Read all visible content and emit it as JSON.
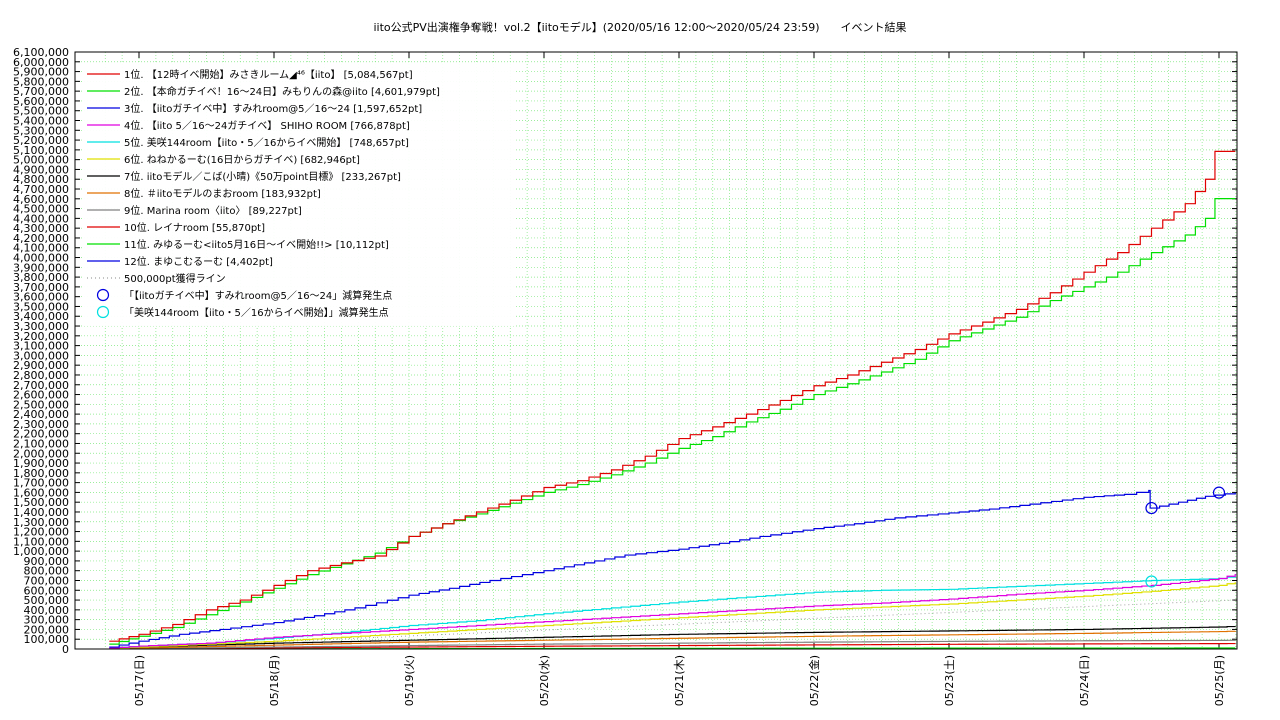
{
  "chart_data": {
    "type": "line",
    "title": "iito公式PV出演権争奪戦！vol.2【iitoモデル】(2020/05/16 12:00〜2020/05/24 23:59)      イベント結果",
    "x_ticks": [
      "05/17(日)",
      "05/18(月)",
      "05/19(火)",
      "05/20(水)",
      "05/21(木)",
      "05/22(金)",
      "05/23(土)",
      "05/24(日)",
      "05/25(月)"
    ],
    "x_range": [
      0.0,
      8.12
    ],
    "y_ticks": [
      "0",
      "100,000",
      "200,000",
      "300,000",
      "400,000",
      "500,000",
      "600,000",
      "700,000",
      "800,000",
      "900,000",
      "1,000,000",
      "1,100,000",
      "1,200,000",
      "1,300,000",
      "1,400,000",
      "1,500,000",
      "1,600,000",
      "1,700,000",
      "1,800,000",
      "1,900,000",
      "2,000,000",
      "2,100,000",
      "2,200,000",
      "2,300,000",
      "2,400,000",
      "2,500,000",
      "2,600,000",
      "2,700,000",
      "2,800,000",
      "2,900,000",
      "3,000,000",
      "3,100,000",
      "3,200,000",
      "3,300,000",
      "3,400,000",
      "3,500,000",
      "3,600,000",
      "3,700,000",
      "3,800,000",
      "3,900,000",
      "4,000,000",
      "4,100,000",
      "4,200,000",
      "4,300,000",
      "4,400,000",
      "4,500,000",
      "4,600,000",
      "4,700,000",
      "4,800,000",
      "4,900,000",
      "5,000,000",
      "5,100,000",
      "5,200,000",
      "5,300,000",
      "5,400,000",
      "5,500,000",
      "5,600,000",
      "5,700,000",
      "5,800,000",
      "5,900,000",
      "6,000,000",
      "6,100,000"
    ],
    "ylim": [
      0,
      6100000
    ],
    "grid": true,
    "legend_position": "top-left",
    "series": [
      {
        "name": "1位. 【12時イベ開始】みさきルーム◢⁴⁶【iito】 [5,084,567pt]",
        "color": "#e00000",
        "points": [
          [
            -0.22,
            80000
          ],
          [
            0,
            150000
          ],
          [
            0.25,
            250000
          ],
          [
            0.5,
            400000
          ],
          [
            0.75,
            500000
          ],
          [
            1,
            650000
          ],
          [
            1.25,
            800000
          ],
          [
            1.5,
            880000
          ],
          [
            1.75,
            950000
          ],
          [
            2,
            1150000
          ],
          [
            2.25,
            1280000
          ],
          [
            2.5,
            1400000
          ],
          [
            2.75,
            1520000
          ],
          [
            3,
            1650000
          ],
          [
            3.25,
            1720000
          ],
          [
            3.5,
            1830000
          ],
          [
            3.75,
            1970000
          ],
          [
            4,
            2150000
          ],
          [
            4.25,
            2270000
          ],
          [
            4.5,
            2400000
          ],
          [
            4.75,
            2540000
          ],
          [
            5,
            2690000
          ],
          [
            5.25,
            2800000
          ],
          [
            5.5,
            2930000
          ],
          [
            5.75,
            3060000
          ],
          [
            6,
            3220000
          ],
          [
            6.25,
            3340000
          ],
          [
            6.5,
            3470000
          ],
          [
            6.75,
            3640000
          ],
          [
            7,
            3850000
          ],
          [
            7.25,
            4050000
          ],
          [
            7.5,
            4300000
          ],
          [
            7.75,
            4550000
          ],
          [
            7.9,
            4800000
          ],
          [
            7.97,
            5084567
          ],
          [
            8.12,
            5084567
          ]
        ]
      },
      {
        "name": "2位. 【本命ガチイベ！16〜24日】みもりんの森@iito [4,601,979pt]",
        "color": "#00e000",
        "points": [
          [
            -0.22,
            50000
          ],
          [
            0,
            130000
          ],
          [
            0.25,
            220000
          ],
          [
            0.5,
            350000
          ],
          [
            0.75,
            480000
          ],
          [
            1,
            620000
          ],
          [
            1.25,
            760000
          ],
          [
            1.5,
            870000
          ],
          [
            1.75,
            980000
          ],
          [
            2,
            1150000
          ],
          [
            2.25,
            1280000
          ],
          [
            2.5,
            1380000
          ],
          [
            2.75,
            1490000
          ],
          [
            3,
            1600000
          ],
          [
            3.25,
            1680000
          ],
          [
            3.5,
            1780000
          ],
          [
            3.75,
            1900000
          ],
          [
            4,
            2050000
          ],
          [
            4.25,
            2170000
          ],
          [
            4.5,
            2320000
          ],
          [
            4.75,
            2450000
          ],
          [
            5,
            2600000
          ],
          [
            5.25,
            2710000
          ],
          [
            5.5,
            2830000
          ],
          [
            5.75,
            2960000
          ],
          [
            6,
            3150000
          ],
          [
            6.25,
            3270000
          ],
          [
            6.5,
            3390000
          ],
          [
            6.75,
            3560000
          ],
          [
            7,
            3700000
          ],
          [
            7.25,
            3850000
          ],
          [
            7.5,
            4050000
          ],
          [
            7.75,
            4230000
          ],
          [
            7.9,
            4400000
          ],
          [
            7.97,
            4601979
          ],
          [
            8.12,
            4601979
          ]
        ]
      },
      {
        "name": "3位. 【iitoガチイベ中】すみれroom@5／16〜24 [1,597,652pt]",
        "color": "#0000e0",
        "points": [
          [
            -0.22,
            20000
          ],
          [
            0,
            80000
          ],
          [
            0.3,
            150000
          ],
          [
            0.6,
            200000
          ],
          [
            1,
            270000
          ],
          [
            1.3,
            340000
          ],
          [
            1.6,
            420000
          ],
          [
            2,
            550000
          ],
          [
            2.3,
            620000
          ],
          [
            2.6,
            700000
          ],
          [
            3,
            800000
          ],
          [
            3.3,
            880000
          ],
          [
            3.6,
            960000
          ],
          [
            4,
            1020000
          ],
          [
            4.3,
            1080000
          ],
          [
            4.6,
            1150000
          ],
          [
            5,
            1230000
          ],
          [
            5.3,
            1280000
          ],
          [
            5.6,
            1340000
          ],
          [
            6,
            1390000
          ],
          [
            6.3,
            1430000
          ],
          [
            6.6,
            1480000
          ],
          [
            7,
            1550000
          ],
          [
            7.3,
            1580000
          ],
          [
            7.48,
            1620000
          ],
          [
            7.49,
            1440000
          ],
          [
            7.7,
            1500000
          ],
          [
            7.9,
            1560000
          ],
          [
            8.12,
            1597652
          ]
        ]
      },
      {
        "name": "4位. 【iito 5／16〜24ガチイベ】 SHIHO ROOM [766,878pt]",
        "color": "#e000e0",
        "points": [
          [
            -0.22,
            10000
          ],
          [
            0,
            30000
          ],
          [
            0.5,
            60000
          ],
          [
            1,
            120000
          ],
          [
            1.5,
            160000
          ],
          [
            2,
            200000
          ],
          [
            2.5,
            240000
          ],
          [
            3,
            280000
          ],
          [
            3.5,
            320000
          ],
          [
            4,
            360000
          ],
          [
            4.5,
            400000
          ],
          [
            5,
            440000
          ],
          [
            5.5,
            470000
          ],
          [
            6,
            510000
          ],
          [
            6.5,
            560000
          ],
          [
            7,
            600000
          ],
          [
            7.5,
            650000
          ],
          [
            8,
            720000
          ],
          [
            8.12,
            766878
          ]
        ]
      },
      {
        "name": "5位. 美咲144room【iito・5／16からイベ開始】 [748,657pt]",
        "color": "#00e0e0",
        "points": [
          [
            -0.22,
            10000
          ],
          [
            0,
            30000
          ],
          [
            0.5,
            60000
          ],
          [
            1,
            110000
          ],
          [
            1.5,
            170000
          ],
          [
            2,
            240000
          ],
          [
            2.5,
            290000
          ],
          [
            3,
            360000
          ],
          [
            3.5,
            420000
          ],
          [
            4,
            480000
          ],
          [
            4.5,
            530000
          ],
          [
            5,
            580000
          ],
          [
            5.5,
            600000
          ],
          [
            6,
            610000
          ],
          [
            6.5,
            640000
          ],
          [
            7,
            670000
          ],
          [
            7.5,
            700000
          ],
          [
            8,
            720000
          ],
          [
            8.12,
            748657
          ]
        ]
      },
      {
        "name": "6位. ねねかるーむ(16日からガチイベ) [682,946pt]",
        "color": "#e0e000",
        "points": [
          [
            -0.22,
            5000
          ],
          [
            0,
            20000
          ],
          [
            0.5,
            50000
          ],
          [
            1,
            80000
          ],
          [
            1.5,
            120000
          ],
          [
            2,
            160000
          ],
          [
            2.5,
            200000
          ],
          [
            3,
            240000
          ],
          [
            3.5,
            280000
          ],
          [
            4,
            320000
          ],
          [
            4.5,
            360000
          ],
          [
            5,
            400000
          ],
          [
            5.5,
            430000
          ],
          [
            6,
            460000
          ],
          [
            6.5,
            500000
          ],
          [
            7,
            540000
          ],
          [
            7.5,
            590000
          ],
          [
            8,
            650000
          ],
          [
            8.12,
            682946
          ]
        ]
      },
      {
        "name": "7位. iitoモデル／こば(小晴)《50万point目標》 [233,267pt]",
        "color": "#000000",
        "points": [
          [
            -0.22,
            5000
          ],
          [
            0,
            20000
          ],
          [
            1,
            60000
          ],
          [
            2,
            90000
          ],
          [
            3,
            120000
          ],
          [
            4,
            150000
          ],
          [
            5,
            170000
          ],
          [
            6,
            185000
          ],
          [
            7,
            200000
          ],
          [
            8,
            225000
          ],
          [
            8.12,
            233267
          ]
        ]
      },
      {
        "name": "8位. ＃iitoモデルのまおroom [183,932pt]",
        "color": "#e07000",
        "points": [
          [
            -0.22,
            2000
          ],
          [
            0,
            10000
          ],
          [
            1,
            40000
          ],
          [
            2,
            70000
          ],
          [
            3,
            90000
          ],
          [
            4,
            110000
          ],
          [
            5,
            130000
          ],
          [
            6,
            145000
          ],
          [
            7,
            160000
          ],
          [
            8,
            178000
          ],
          [
            8.12,
            183932
          ]
        ]
      },
      {
        "name": "9位. Marina room〈iito〉 [89,227pt]",
        "color": "#808080",
        "points": [
          [
            -0.22,
            1000
          ],
          [
            0,
            5000
          ],
          [
            1,
            20000
          ],
          [
            2,
            35000
          ],
          [
            3,
            50000
          ],
          [
            4,
            60000
          ],
          [
            5,
            70000
          ],
          [
            6,
            78000
          ],
          [
            7,
            84000
          ],
          [
            8,
            88000
          ],
          [
            8.12,
            89227
          ]
        ]
      },
      {
        "name": "10位. レイナroom [55,870pt]",
        "color": "#e00000",
        "points": [
          [
            -0.22,
            0
          ],
          [
            0,
            2000
          ],
          [
            1,
            12000
          ],
          [
            2,
            20000
          ],
          [
            3,
            28000
          ],
          [
            4,
            35000
          ],
          [
            5,
            42000
          ],
          [
            6,
            48000
          ],
          [
            7,
            52000
          ],
          [
            8,
            55000
          ],
          [
            8.12,
            55870
          ]
        ]
      },
      {
        "name": "11位. みゆるーむ<iito5月16日〜イベ開始!!> [10,112pt]",
        "color": "#00e000",
        "points": [
          [
            -0.22,
            0
          ],
          [
            1,
            2000
          ],
          [
            3,
            5000
          ],
          [
            5,
            8000
          ],
          [
            7,
            9500
          ],
          [
            8.12,
            10112
          ]
        ]
      },
      {
        "name": "12位. まゆこむるーむ [4,402pt]",
        "color": "#0000e0",
        "points": [
          [
            -0.22,
            0
          ],
          [
            2,
            1000
          ],
          [
            5,
            3000
          ],
          [
            8.12,
            4402
          ]
        ]
      },
      {
        "name": "500,000pt獲得ライン",
        "color": "#a0a0a0",
        "dashed": true,
        "points": [
          [
            -0.22,
            0
          ],
          [
            8.12,
            500000
          ]
        ]
      }
    ],
    "markers": [
      {
        "name": "「【iitoガチイベ中】すみれroom@5／16〜24」減算発生点",
        "color": "#0000e0",
        "points": [
          [
            7.5,
            1440000
          ],
          [
            8.0,
            1597652
          ]
        ]
      },
      {
        "name": "「美咲144room【iito・5／16からイベ開始】」減算発生点",
        "color": "#00e0e0",
        "points": [
          [
            7.5,
            690000
          ]
        ]
      }
    ]
  }
}
